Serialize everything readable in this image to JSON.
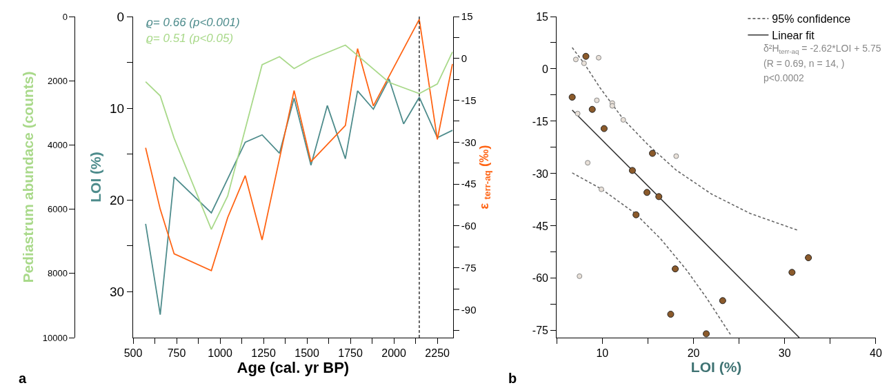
{
  "chart_data": [
    {
      "type": "line",
      "xlabel": "Age (cal. yr BP)",
      "ylabel": "LOI (%)",
      "y2label": "ε $_{terr-aq}$ (‰)",
      "y3label": "Pediastrum abundace (counts)",
      "xlim": [
        500,
        2340
      ],
      "xticks": [
        500,
        {
          "value": 625,
          "label": null
        },
        750,
        {
          "value": 875,
          "label": null
        },
        1000,
        {
          "value": 1125,
          "label": null
        },
        1250,
        {
          "value": 1375,
          "label": null
        },
        1500,
        {
          "value": 1625,
          "label": null
        },
        1750,
        {
          "value": 1875,
          "label": null
        },
        2000,
        {
          "value": 2125,
          "label": null
        },
        2250
      ],
      "ylim": [
        35,
        0
      ],
      "yticks": [
        0,
        {
          "value": 5,
          "label": null
        },
        10,
        {
          "value": 15,
          "label": null
        },
        20,
        {
          "value": 25,
          "label": null
        },
        30
      ],
      "y2lim": [
        -100,
        15
      ],
      "y2ticks": [
        15,
        {
          "value": 7.5,
          "label": null
        },
        0,
        {
          "value": -7.5,
          "label": null
        },
        -15,
        {
          "value": -22.5,
          "label": null
        },
        -30,
        {
          "value": -37.5,
          "label": null
        },
        -45,
        {
          "value": -52.5,
          "label": null
        },
        -60,
        {
          "value": -67.5,
          "label": null
        },
        -75,
        {
          "value": -82.5,
          "label": null
        },
        -90,
        {
          "value": -97.5,
          "label": null
        }
      ],
      "y3lim": [
        10000,
        0
      ],
      "y3ticks": [
        0,
        2000,
        4000,
        6000,
        8000,
        10000
      ],
      "series": [
        {
          "color": "#4e8c8c",
          "axis": "y",
          "x": [
            572,
            656,
            736,
            950,
            1145,
            1242,
            1342,
            1426,
            1523,
            1617,
            1721,
            1791,
            1882,
            1972,
            2056,
            2146,
            2250,
            2337
          ],
          "values": [
            22.6,
            32.5,
            17.5,
            21.4,
            13.7,
            12.9,
            14.9,
            8.9,
            16.2,
            9.7,
            15.5,
            8.1,
            10.1,
            6.8,
            11.7,
            8.8,
            13.2,
            12.4
          ]
        },
        {
          "color": "#a9d98a",
          "axis": "y3",
          "x": [
            572,
            656,
            736,
            950,
            1044,
            1242,
            1342,
            1426,
            1523,
            1721,
            1972,
            2146,
            2250,
            2337
          ],
          "values": [
            2030,
            2470,
            3790,
            6630,
            5590,
            1500,
            1250,
            1620,
            1330,
            890,
            2050,
            2400,
            2100,
            1100
          ]
        },
        {
          "color": "#ff6414",
          "axis": "y2",
          "x": [
            572,
            656,
            736,
            950,
            1044,
            1145,
            1242,
            1426,
            1523,
            1721,
            1791,
            1882,
            2146,
            2250,
            2337
          ],
          "values": [
            -32,
            -54,
            -70,
            -76,
            -57,
            -42,
            -65,
            -11.5,
            -37,
            -24,
            3.5,
            -17,
            14,
            -29,
            -2
          ]
        }
      ],
      "ref_lines": [
        {
          "axis": "x",
          "value": 2146,
          "color": "#333333",
          "line_style": "dashed"
        }
      ],
      "annotations": [
        "ϱ= 0.66 (p<0.001)",
        "ϱ= 0.51 (p<0.05)",
        "a"
      ],
      "legend": false
    },
    {
      "type": "scatter",
      "xlabel": "LOI (%)",
      "xlim": [
        5,
        40
      ],
      "xticks": [
        {
          "value": 5,
          "label": null
        },
        10,
        {
          "value": 15,
          "label": null
        },
        20,
        {
          "value": 25,
          "label": null
        },
        30,
        {
          "value": 35,
          "label": null
        },
        40
      ],
      "ylim": [
        -77,
        15
      ],
      "yticks": [
        15,
        {
          "value": 7.5,
          "label": null
        },
        0,
        {
          "value": -7.5,
          "label": null
        },
        -15,
        {
          "value": -22.5,
          "label": null
        },
        -30,
        {
          "value": -37.5,
          "label": null
        },
        -45,
        {
          "value": -52.5,
          "label": null
        },
        -60,
        {
          "value": -67.5,
          "label": null
        },
        -75
      ],
      "series": [
        {
          "type": "line",
          "name": "95% confidence",
          "color": "#666666",
          "line_style": "dashed",
          "marker": "none",
          "x": [
            6.7,
            8.0,
            9.8,
            12.3,
            15.0,
            18.1,
            22.0,
            26.2,
            31.4
          ],
          "values": [
            6.1,
            1.6,
            -5.6,
            -14.4,
            -21.7,
            -29.0,
            -35.9,
            -41.4,
            -46.2
          ]
        },
        {
          "type": "line",
          "color": "#666666",
          "line_style": "dashed",
          "marker": "none",
          "x": [
            6.7,
            9.9,
            13.6,
            16.4,
            19.2,
            21.4,
            24.1
          ],
          "values": [
            -29.8,
            -34.4,
            -41.4,
            -48.7,
            -57.5,
            -65.5,
            -76.3
          ]
        },
        {
          "type": "line",
          "name": "Linear fit",
          "color": "#333333",
          "line_style": "solid",
          "marker": "none",
          "x": [
            6.7,
            31.6
          ],
          "values": [
            -11.8,
            -77.0
          ]
        },
        {
          "type": "scatter",
          "color": "#e8e0d8",
          "marker": "circle",
          "x": [
            7.1,
            8.0,
            9.6,
            9.4,
            11.1,
            11.1,
            7.3,
            12.3,
            18.1,
            8.4,
            9.9,
            7.5
          ],
          "values": [
            2.7,
            1.6,
            3.2,
            -9.0,
            -9.8,
            -10.6,
            -12.8,
            -14.6,
            -25.0,
            -26.9,
            -34.5,
            -59.4
          ]
        },
        {
          "type": "scatter",
          "color": "#8b5a2b",
          "marker": "circle",
          "x": [
            8.2,
            6.7,
            8.9,
            10.2,
            15.5,
            13.3,
            14.9,
            16.2,
            13.7,
            18.0,
            30.8,
            32.6,
            23.2,
            17.5,
            21.4
          ],
          "values": [
            3.6,
            -8.1,
            -11.6,
            -17.1,
            -24.2,
            -29.1,
            -35.4,
            -36.6,
            -41.8,
            -57.3,
            -58.3,
            -54.1,
            -66.4,
            -70.3,
            -75.9
          ]
        }
      ],
      "annotations": [
        "δ²H$_{terr-aq}$ = -2.62*LOI + 5.75",
        "(R = 0.69, n = 14, )",
        "p<0.0002",
        "b"
      ],
      "legend": "top right"
    }
  ]
}
